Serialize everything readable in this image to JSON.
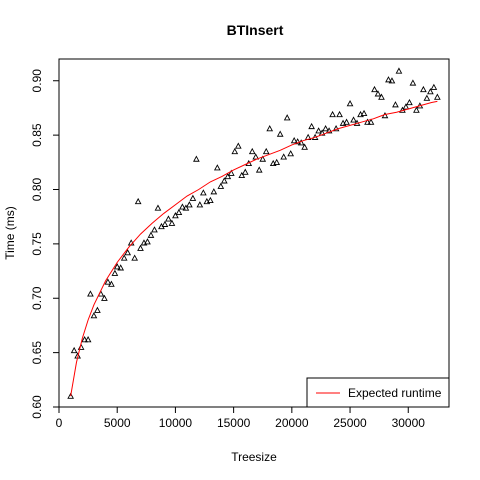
{
  "chart_data": {
    "type": "scatter",
    "title": "BTInsert",
    "xlabel": "Treesize",
    "ylabel": "Time (ms)",
    "xlim": [
      0,
      33500
    ],
    "ylim": [
      0.6,
      0.92
    ],
    "x_ticks": [
      0,
      5000,
      10000,
      15000,
      20000,
      25000,
      30000
    ],
    "y_ticks": [
      0.6,
      0.65,
      0.7,
      0.75,
      0.8,
      0.85,
      0.9
    ],
    "x_tick_labels": [
      "0",
      "5000",
      "10000",
      "15000",
      "20000",
      "25000",
      "30000"
    ],
    "y_tick_labels": [
      "0.60",
      "0.65",
      "0.70",
      "0.75",
      "0.80",
      "0.85",
      "0.90"
    ],
    "grid": false,
    "legend": {
      "position": "bottom-right",
      "entries": [
        {
          "label": "Expected runtime",
          "color": "#ff0000",
          "symbol": "line"
        }
      ]
    },
    "series": [
      {
        "marker": "triangle-open",
        "color": "#000000",
        "points": [
          [
            1000,
            0.61
          ],
          [
            1300,
            0.652
          ],
          [
            1600,
            0.647
          ],
          [
            1900,
            0.655
          ],
          [
            2200,
            0.662
          ],
          [
            2500,
            0.662
          ],
          [
            2700,
            0.704
          ],
          [
            3000,
            0.684
          ],
          [
            3300,
            0.689
          ],
          [
            3600,
            0.704
          ],
          [
            3900,
            0.7
          ],
          [
            4200,
            0.715
          ],
          [
            4500,
            0.713
          ],
          [
            4800,
            0.723
          ],
          [
            5000,
            0.729
          ],
          [
            5300,
            0.728
          ],
          [
            5600,
            0.737
          ],
          [
            5900,
            0.742
          ],
          [
            6200,
            0.751
          ],
          [
            6500,
            0.737
          ],
          [
            6800,
            0.789
          ],
          [
            7000,
            0.746
          ],
          [
            7300,
            0.751
          ],
          [
            7600,
            0.752
          ],
          [
            7900,
            0.758
          ],
          [
            8200,
            0.763
          ],
          [
            8500,
            0.783
          ],
          [
            8800,
            0.766
          ],
          [
            9100,
            0.768
          ],
          [
            9400,
            0.773
          ],
          [
            9700,
            0.769
          ],
          [
            10000,
            0.776
          ],
          [
            10300,
            0.779
          ],
          [
            10600,
            0.784
          ],
          [
            10900,
            0.783
          ],
          [
            11200,
            0.786
          ],
          [
            11500,
            0.792
          ],
          [
            11800,
            0.828
          ],
          [
            12100,
            0.786
          ],
          [
            12400,
            0.797
          ],
          [
            12700,
            0.789
          ],
          [
            13000,
            0.79
          ],
          [
            13300,
            0.798
          ],
          [
            13600,
            0.82
          ],
          [
            13900,
            0.803
          ],
          [
            14200,
            0.808
          ],
          [
            14500,
            0.812
          ],
          [
            14800,
            0.815
          ],
          [
            15100,
            0.835
          ],
          [
            15400,
            0.84
          ],
          [
            15700,
            0.813
          ],
          [
            16000,
            0.816
          ],
          [
            16300,
            0.824
          ],
          [
            16600,
            0.835
          ],
          [
            16900,
            0.83
          ],
          [
            17200,
            0.818
          ],
          [
            17500,
            0.828
          ],
          [
            17800,
            0.835
          ],
          [
            18100,
            0.856
          ],
          [
            18400,
            0.824
          ],
          [
            18700,
            0.825
          ],
          [
            19000,
            0.851
          ],
          [
            19300,
            0.83
          ],
          [
            19600,
            0.866
          ],
          [
            19900,
            0.833
          ],
          [
            20200,
            0.845
          ],
          [
            20500,
            0.844
          ],
          [
            20800,
            0.843
          ],
          [
            21100,
            0.839
          ],
          [
            21400,
            0.848
          ],
          [
            21700,
            0.858
          ],
          [
            22000,
            0.848
          ],
          [
            22300,
            0.854
          ],
          [
            22600,
            0.852
          ],
          [
            22900,
            0.856
          ],
          [
            23200,
            0.854
          ],
          [
            23500,
            0.869
          ],
          [
            23800,
            0.856
          ],
          [
            24100,
            0.869
          ],
          [
            24400,
            0.861
          ],
          [
            24700,
            0.862
          ],
          [
            25000,
            0.879
          ],
          [
            25300,
            0.864
          ],
          [
            25600,
            0.861
          ],
          [
            25900,
            0.869
          ],
          [
            26200,
            0.87
          ],
          [
            26500,
            0.862
          ],
          [
            26800,
            0.862
          ],
          [
            27100,
            0.892
          ],
          [
            27400,
            0.888
          ],
          [
            27700,
            0.885
          ],
          [
            28000,
            0.868
          ],
          [
            28300,
            0.901
          ],
          [
            28600,
            0.9
          ],
          [
            28900,
            0.878
          ],
          [
            29200,
            0.909
          ],
          [
            29500,
            0.873
          ],
          [
            29800,
            0.876
          ],
          [
            30100,
            0.88
          ],
          [
            30400,
            0.898
          ],
          [
            30700,
            0.873
          ],
          [
            31000,
            0.877
          ],
          [
            31300,
            0.892
          ],
          [
            31600,
            0.884
          ],
          [
            31900,
            0.89
          ],
          [
            32200,
            0.894
          ],
          [
            32500,
            0.885
          ]
        ]
      },
      {
        "name": "Expected runtime",
        "type": "line",
        "color": "#ff0000",
        "points": [
          [
            1000,
            0.61
          ],
          [
            1500,
            0.641
          ],
          [
            2000,
            0.663
          ],
          [
            2500,
            0.68
          ],
          [
            3000,
            0.694
          ],
          [
            4000,
            0.716
          ],
          [
            5000,
            0.733
          ],
          [
            6000,
            0.747
          ],
          [
            7000,
            0.759
          ],
          [
            8000,
            0.769
          ],
          [
            9000,
            0.778
          ],
          [
            10000,
            0.786
          ],
          [
            11000,
            0.794
          ],
          [
            12000,
            0.8
          ],
          [
            13000,
            0.807
          ],
          [
            14000,
            0.812
          ],
          [
            15000,
            0.818
          ],
          [
            16000,
            0.823
          ],
          [
            17000,
            0.828
          ],
          [
            18000,
            0.832
          ],
          [
            19000,
            0.836
          ],
          [
            20000,
            0.841
          ],
          [
            21000,
            0.845
          ],
          [
            22000,
            0.848
          ],
          [
            23000,
            0.852
          ],
          [
            24000,
            0.856
          ],
          [
            25000,
            0.859
          ],
          [
            26000,
            0.862
          ],
          [
            27000,
            0.865
          ],
          [
            28000,
            0.869
          ],
          [
            29000,
            0.871
          ],
          [
            30000,
            0.874
          ],
          [
            31000,
            0.877
          ],
          [
            32000,
            0.88
          ],
          [
            32500,
            0.881
          ]
        ]
      }
    ]
  }
}
